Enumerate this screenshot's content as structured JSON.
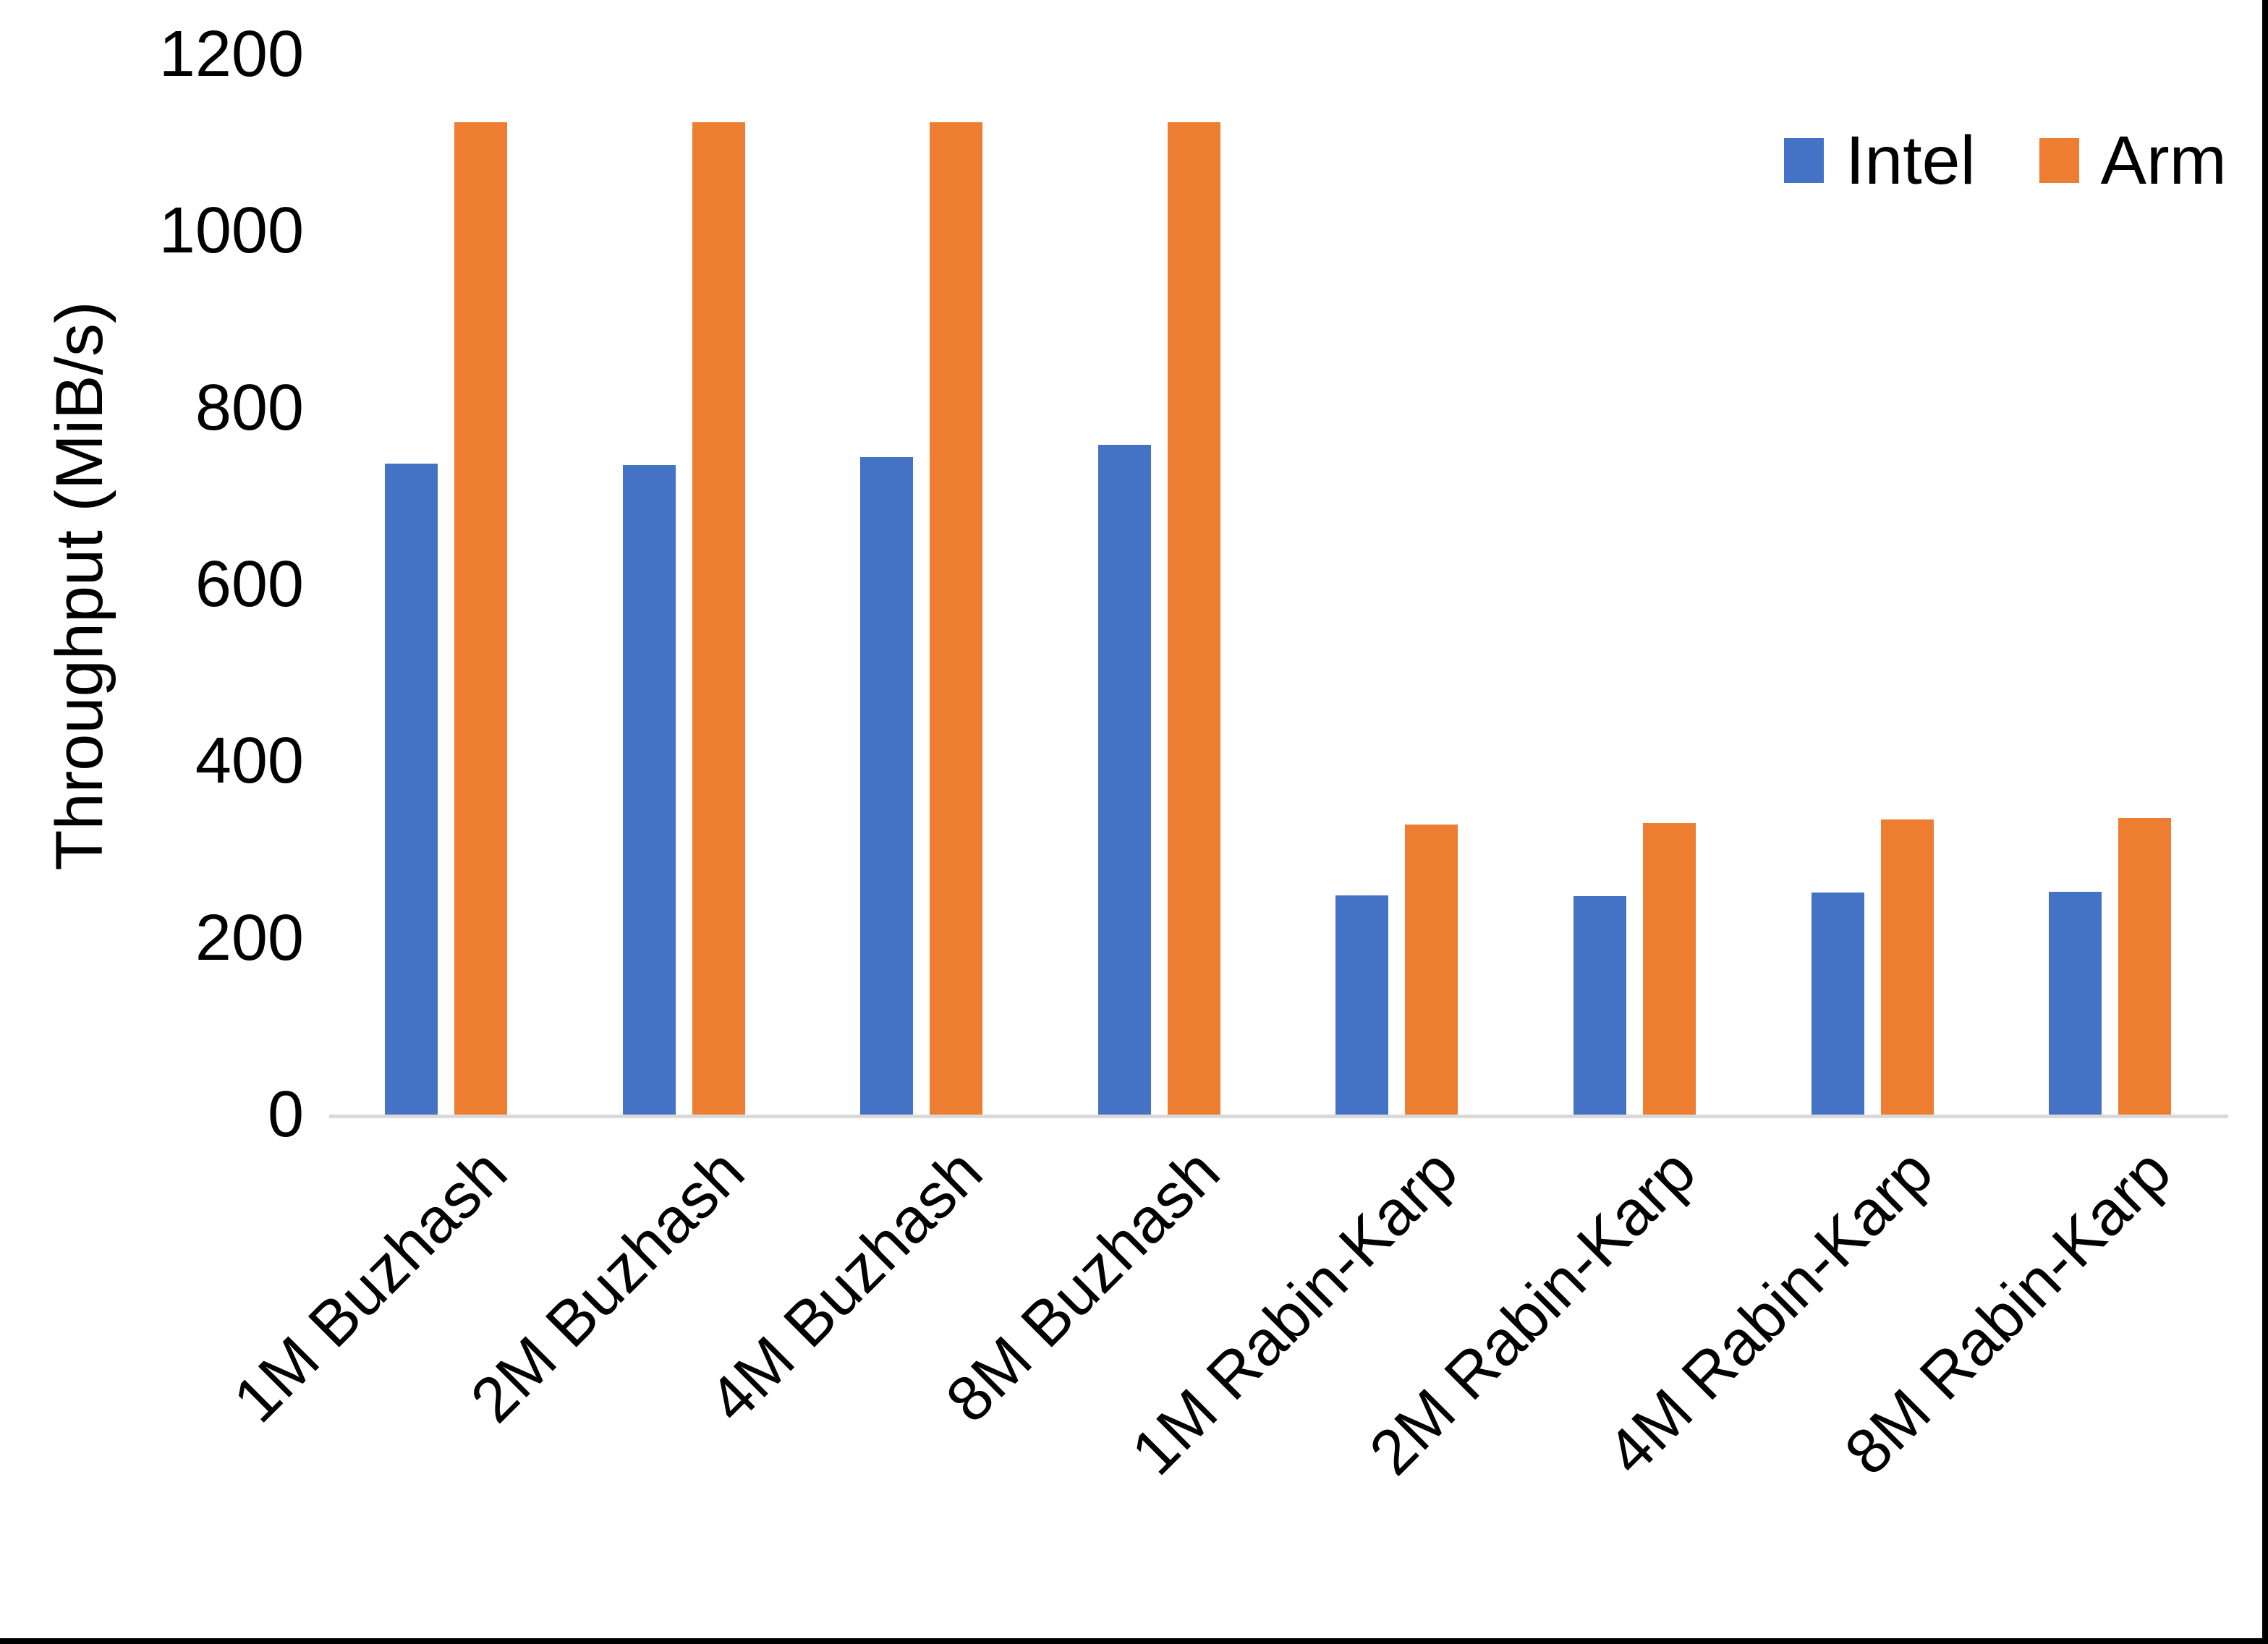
{
  "chart_data": {
    "type": "bar",
    "title": "",
    "xlabel": "",
    "ylabel": "Throughput (MiB/s)",
    "categories": [
      "1M Buzhash",
      "2M Buzhash",
      "4M Buzhash",
      "8M Buzhash",
      "1M Rabin-Karp",
      "2M Rabin-Karp",
      "4M Rabin-Karp",
      "8M Rabin-Karp"
    ],
    "series": [
      {
        "name": "Intel",
        "color": "#4472C4",
        "values": [
          737,
          735,
          744,
          758,
          248,
          247,
          251,
          252
        ]
      },
      {
        "name": "Arm",
        "color": "#ED7D31",
        "values": [
          1123,
          1123,
          1123,
          1123,
          328,
          330,
          334,
          336
        ]
      }
    ],
    "ylim": [
      0,
      1200
    ],
    "yticks": [
      0,
      200,
      400,
      600,
      800,
      1000,
      1200
    ],
    "grid": false,
    "legend_position": "top-right",
    "axis_line_color": "#D9D9D9",
    "background_color": "#FFFFFF",
    "border_color": "#000000"
  }
}
